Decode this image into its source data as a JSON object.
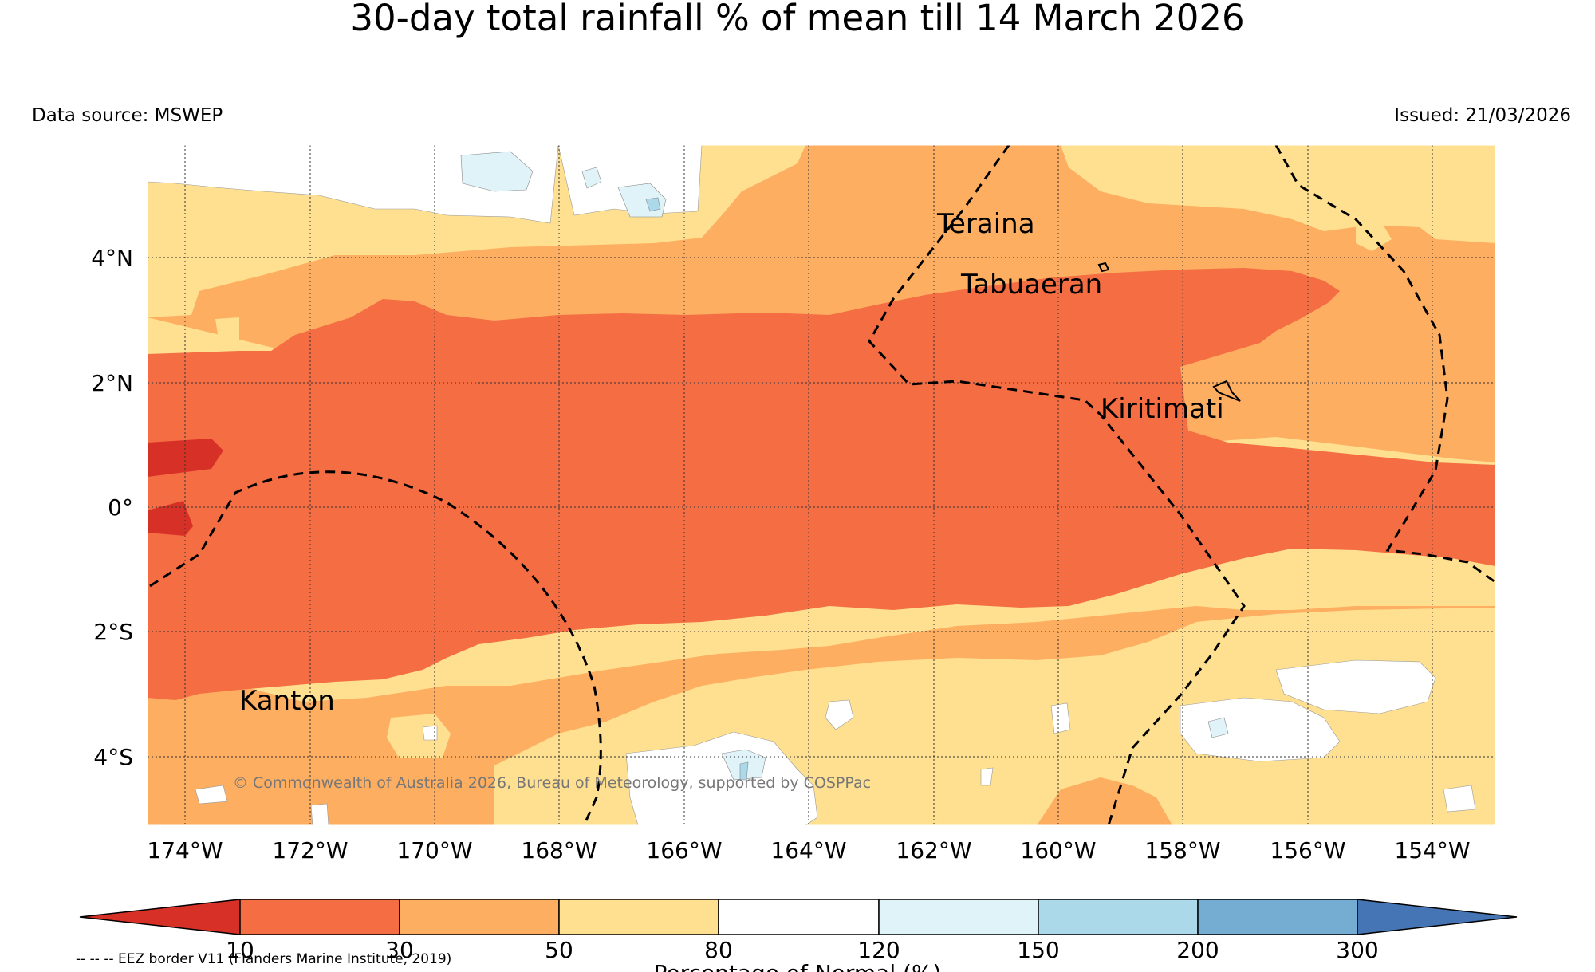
{
  "title": "30-day total rainfall % of mean till 14 March 2026",
  "data_source": "Data source: MSWEP",
  "issued": "Issued: 21/03/2026",
  "copyright": "© Commonwealth of Australia 2026, Bureau of Meteorology, supported by COSPPac",
  "lon_labels": [
    "174°W",
    "172°W",
    "170°W",
    "168°W",
    "166°W",
    "164°W",
    "162°W",
    "160°W",
    "158°W",
    "156°W",
    "154°W"
  ],
  "lat_labels": [
    "4°N",
    "2°N",
    "0°",
    "2°S",
    "4°S"
  ],
  "places": {
    "teraina": "Teraina",
    "tabuaeran": "Tabuaeran",
    "kiritimati": "Kiritimati",
    "kanton": "Kanton"
  },
  "colorbar": {
    "ticks": [
      "10",
      "30",
      "50",
      "80",
      "120",
      "150",
      "200",
      "300"
    ],
    "label": "Percentage of Normal (%)",
    "colors": [
      "#d73027",
      "#f46d43",
      "#fdae61",
      "#fee090",
      "#ffffff",
      "#e0f3f8",
      "#abd9e9",
      "#74add1",
      "#4575b4"
    ]
  },
  "eez_note": "-- -- -- EEZ border V11 (Flanders Marine Institute, 2019)"
}
